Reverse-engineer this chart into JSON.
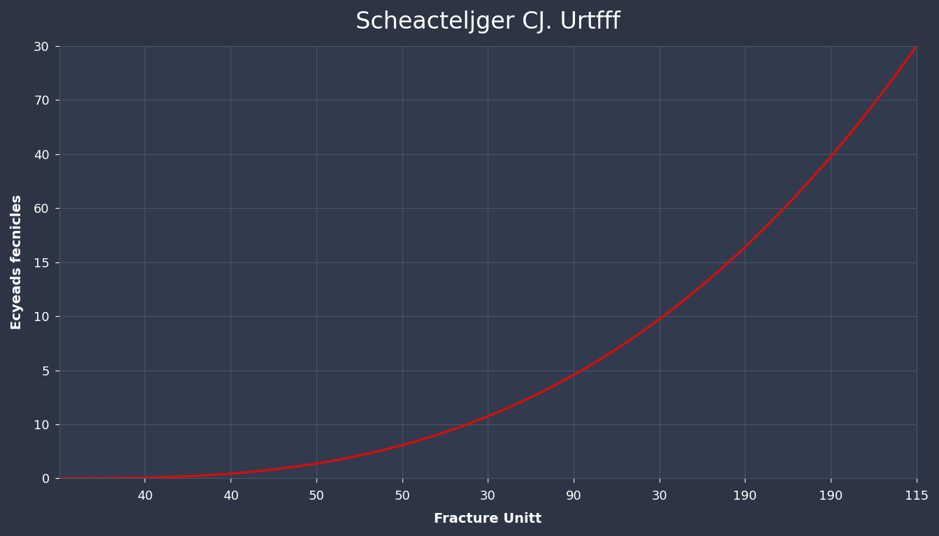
{
  "title": "Scheacteljger CJ. Urtfff",
  "xlabel": "Fracture Unitt",
  "ylabel": "Ecyeads fecnicles",
  "bg_color": "#2d3545",
  "ax_bg_color": "#313b4d",
  "line_color": "#cc1111",
  "grid_color": "#4a5568",
  "text_color": "#ffffff",
  "x_tick_positions": [
    1,
    2,
    3,
    4,
    5,
    6,
    7,
    8,
    9,
    10
  ],
  "x_tick_labels": [
    "40",
    "40",
    "50",
    "50",
    "30",
    "90",
    "30",
    "190",
    "190",
    "115"
  ],
  "y_tick_positions": [
    0,
    1,
    2,
    3,
    4,
    5,
    6,
    7,
    8
  ],
  "y_tick_labels": [
    "0",
    "10",
    "5",
    "10",
    "15",
    "60",
    "40",
    "70",
    "30"
  ],
  "xlim": [
    0,
    10
  ],
  "ylim": [
    0,
    8
  ],
  "title_fontsize": 24,
  "label_fontsize": 14,
  "tick_fontsize": 13,
  "line_width": 2.5,
  "curve_power": 2.8,
  "curve_scale": 8.0
}
